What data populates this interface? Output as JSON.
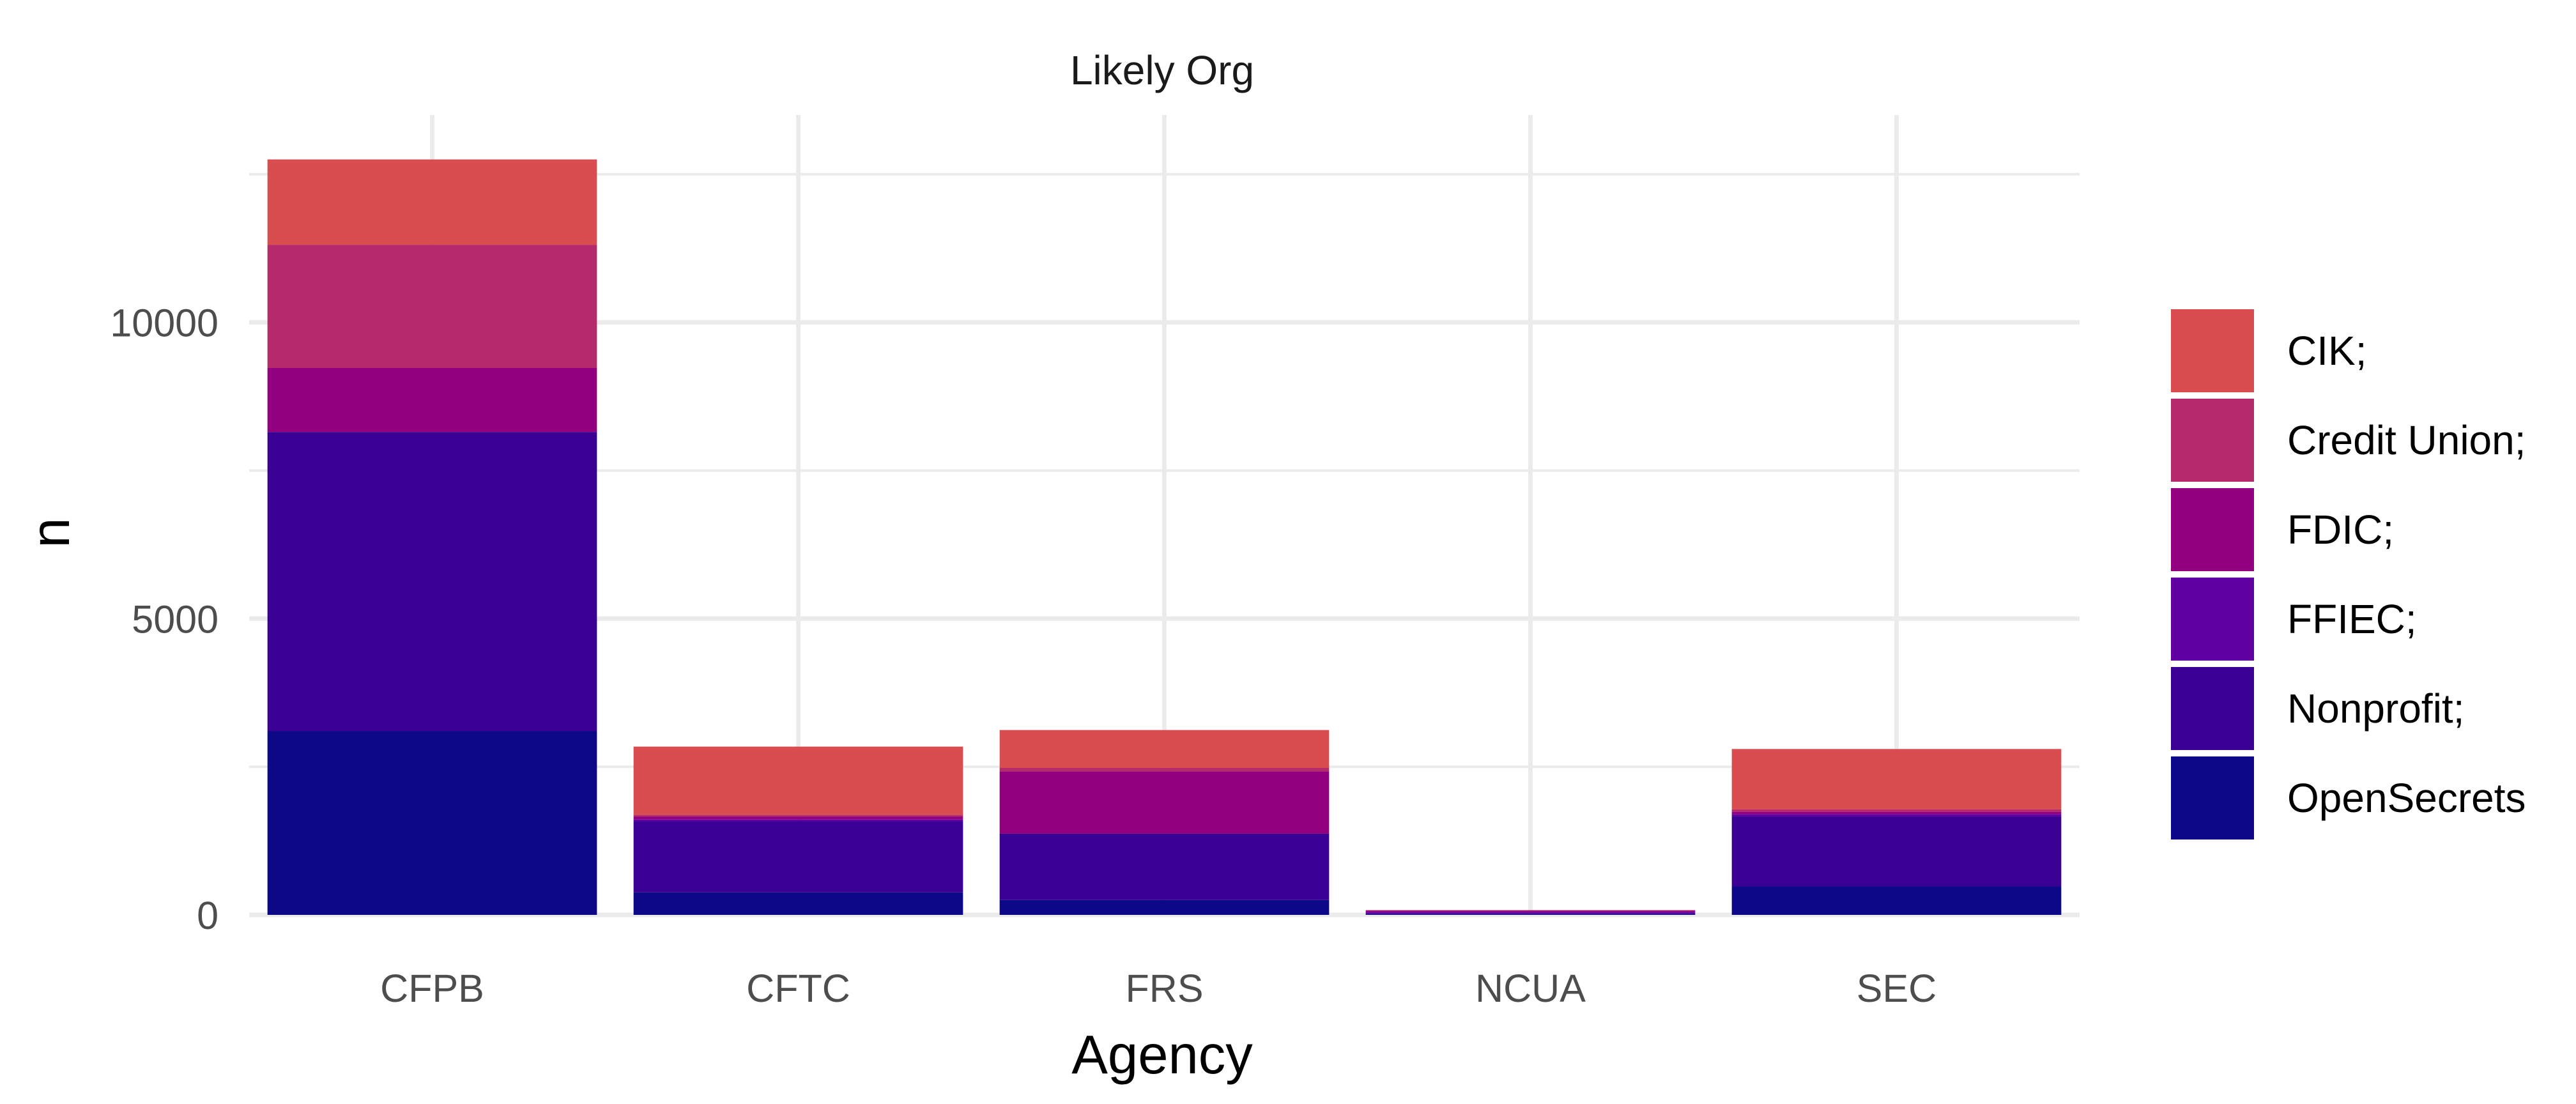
{
  "chart_data": {
    "type": "bar",
    "stacked": true,
    "facet_title": "Likely Org",
    "xlabel": "Agency",
    "ylabel": "n",
    "categories": [
      "CFPB",
      "CFTC",
      "FRS",
      "NCUA",
      "SEC"
    ],
    "ylim": [
      0,
      13500
    ],
    "yticks": [
      0,
      5000,
      10000
    ],
    "grid": true,
    "legend_position": "right",
    "series": [
      {
        "name": "OpenSecrets",
        "color": "#0D0887",
        "values": [
          3100,
          380,
          250,
          10,
          480
        ]
      },
      {
        "name": "Nonprofit;",
        "color": "#3A0093",
        "values": [
          5050,
          1200,
          1120,
          20,
          1180
        ]
      },
      {
        "name": "FFIEC;",
        "color": "#6100A0",
        "values": [
          0,
          30,
          0,
          20,
          40
        ]
      },
      {
        "name": "FDIC;",
        "color": "#92007F",
        "values": [
          1080,
          50,
          1050,
          20,
          40
        ]
      },
      {
        "name": "Credit Union;",
        "color": "#B42A6A",
        "values": [
          2080,
          30,
          60,
          10,
          40
        ]
      },
      {
        "name": "CIK;",
        "color": "#D94C50",
        "values": [
          1440,
          1150,
          640,
          0,
          1020
        ]
      }
    ]
  }
}
